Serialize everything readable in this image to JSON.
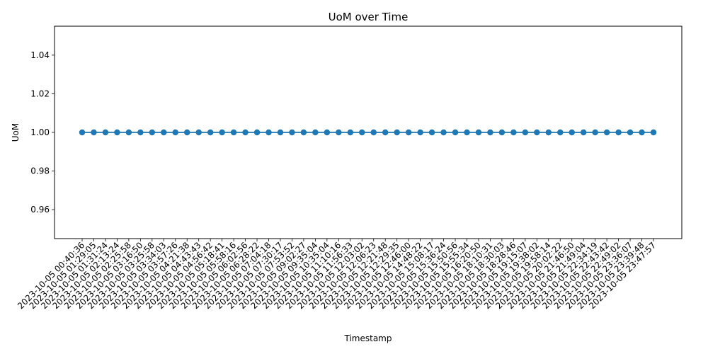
{
  "chart_data": {
    "type": "line",
    "title": "UoM over Time",
    "xlabel": "Timestamp",
    "ylabel": "UoM",
    "ylim": [
      0.945,
      1.055
    ],
    "yticks": [
      "0.96",
      "0.98",
      "1.00",
      "1.02",
      "1.04"
    ],
    "grid": false,
    "legend": "none",
    "series_color": "#1f77b4",
    "x": [
      "2023-10-05 00:40:36",
      "2023-10-05 01:29:05",
      "2023-10-05 01:31:24",
      "2023-10-05 02:13:24",
      "2023-10-05 02:25:58",
      "2023-10-05 03:16:50",
      "2023-10-05 03:25:58",
      "2023-10-05 03:34:03",
      "2023-10-05 03:57:26",
      "2023-10-05 04:21:38",
      "2023-10-05 04:43:43",
      "2023-10-05 04:56:42",
      "2023-10-05 05:18:41",
      "2023-10-05 05:58:16",
      "2023-10-05 06:02:56",
      "2023-10-05 06:28:22",
      "2023-10-05 07:04:18",
      "2023-10-05 07:30:17",
      "2023-10-05 07:53:52",
      "2023-10-05 09:02:27",
      "2023-10-05 09:35:04",
      "2023-10-05 10:35:04",
      "2023-10-05 11:10:16",
      "2023-10-05 11:56:33",
      "2023-10-05 12:03:02",
      "2023-10-05 12:06:23",
      "2023-10-05 12:21:48",
      "2023-10-05 12:29:35",
      "2023-10-05 12:46:00",
      "2023-10-05 14:48:22",
      "2023-10-05 15:08:17",
      "2023-10-05 15:36:24",
      "2023-10-05 15:50:56",
      "2023-10-05 15:55:34",
      "2023-10-05 16:20:50",
      "2023-10-05 18:10:31",
      "2023-10-05 18:30:03",
      "2023-10-05 18:28:46",
      "2023-10-05 19:15:07",
      "2023-10-05 19:38:02",
      "2023-10-05 19:58:14",
      "2023-10-05 20:02:22",
      "2023-10-05 21:46:50",
      "2023-10-05 21:49:04",
      "2023-10-05 22:34:19",
      "2023-10-05 22:43:42",
      "2023-10-05 22:49:02",
      "2023-10-05 23:36:07",
      "2023-10-05 23:39:48",
      "2023-10-05 23:47:57"
    ],
    "y": [
      1,
      1,
      1,
      1,
      1,
      1,
      1,
      1,
      1,
      1,
      1,
      1,
      1,
      1,
      1,
      1,
      1,
      1,
      1,
      1,
      1,
      1,
      1,
      1,
      1,
      1,
      1,
      1,
      1,
      1,
      1,
      1,
      1,
      1,
      1,
      1,
      1,
      1,
      1,
      1,
      1,
      1,
      1,
      1,
      1,
      1,
      1,
      1,
      1,
      1
    ]
  }
}
